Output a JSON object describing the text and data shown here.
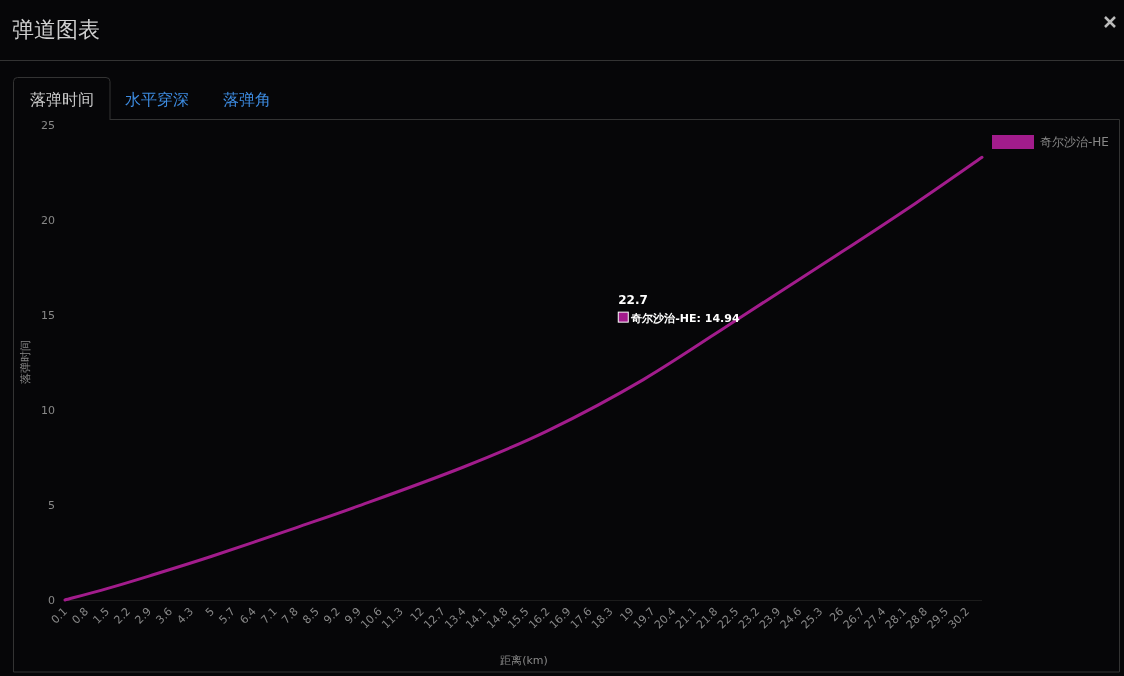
{
  "chart_data": {
    "type": "line",
    "title": "弹道图表",
    "xlabel": "距离(km)",
    "ylabel": "落弹时间",
    "annotations": [
      "落弹时间",
      "水平穿深",
      "落弹角",
      {
        "text": "22.7\n奇尔沙治-HE: 14.94",
        "x": 22.7,
        "y": 14.94
      }
    ],
    "x": [
      0.1,
      1.5,
      2.9,
      5,
      7.8,
      9.9,
      13.4,
      16.2,
      19.4,
      22.7,
      26,
      28.5,
      30.7
    ],
    "series": [
      {
        "name": "奇尔沙治-HE",
        "color": "#a21c8c",
        "values": [
          0,
          0.6,
          1.26,
          2.3,
          3.8,
          4.95,
          7.0,
          8.9,
          11.6,
          14.94,
          18.3,
          20.9,
          23.3
        ]
      }
    ],
    "xlim": [
      0.1,
      30.7
    ],
    "xticks": [
      0.1,
      0.8,
      1.5,
      2.2,
      2.9,
      3.6,
      4.3,
      5,
      5.7,
      6.4,
      7.1,
      7.8,
      8.5,
      9.2,
      9.9,
      10.6,
      11.3,
      12,
      12.7,
      13.4,
      14.1,
      14.8,
      15.5,
      16.2,
      16.9,
      17.6,
      18.3,
      19,
      19.7,
      20.4,
      21.1,
      21.8,
      22.5,
      23.2,
      23.9,
      24.6,
      25.3,
      26,
      26.7,
      27.4,
      28.1,
      28.8,
      29.5,
      30.2
    ],
    "ylim": [
      0,
      25
    ],
    "yticks": [
      0,
      5,
      10,
      15,
      20,
      25
    ],
    "grid": false,
    "legend": "top right",
    "marker": "none",
    "line_style": "solid"
  }
}
